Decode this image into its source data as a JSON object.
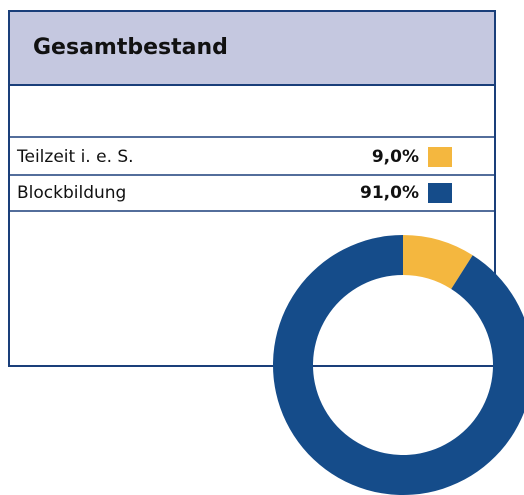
{
  "chart_data": {
    "type": "pie",
    "title": "Gesamtbestand",
    "categories": [
      "Teilzeit i. e. S.",
      "Blockbildung"
    ],
    "values": [
      9.0,
      91.0
    ],
    "value_labels": [
      "9,0%",
      "91,0%"
    ],
    "colors": [
      "#f4b73f",
      "#154c8a"
    ],
    "donut": true
  }
}
